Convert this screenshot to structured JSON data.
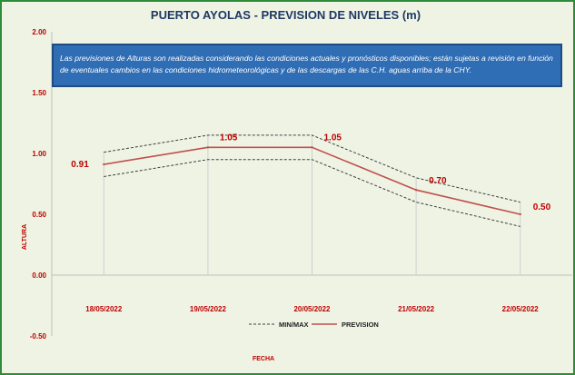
{
  "chart_data": {
    "type": "line",
    "title": "PUERTO AYOLAS - PREVISION DE NIVELES (m)",
    "notice": "Las previsiones de Alturas son realizadas considerando las condiciones actuales y pronósticos disponibles;  están sujetas a revisión en función de eventuales cambios en las condiciones hidrometeorológicas y de las descargas de las C.H. aguas arriba de la CHY.",
    "xlabel": "FECHA",
    "ylabel": "ALTURA",
    "ylim": [
      -0.5,
      2.0
    ],
    "yticks": [
      "-0.50",
      "0.00",
      "0.50",
      "1.00",
      "1.50",
      "2.00"
    ],
    "categories": [
      "18/05/2022",
      "19/05/2022",
      "20/05/2022",
      "21/05/2022",
      "22/05/2022"
    ],
    "series": [
      {
        "name": "PREVISION",
        "values": [
          0.91,
          1.05,
          1.05,
          0.7,
          0.5
        ],
        "color": "#c0504d",
        "style": "solid"
      },
      {
        "name": "MIN/MAX",
        "role": "max",
        "values": [
          1.01,
          1.15,
          1.15,
          0.8,
          0.6
        ],
        "color": "#404040",
        "style": "dashed"
      },
      {
        "name": "MIN/MAX",
        "role": "min",
        "values": [
          0.81,
          0.95,
          0.95,
          0.6,
          0.4
        ],
        "color": "#404040",
        "style": "dashed"
      }
    ],
    "data_labels": [
      "0.91",
      "1.05",
      "1.05",
      "0.70",
      "0.50"
    ],
    "legend": {
      "position": "bottom",
      "items": [
        "MIN/MAX",
        "PREVISION"
      ]
    },
    "grid": false,
    "colors": {
      "frame": "#2e8b3a",
      "background": "#eef3e4",
      "notice_bg": "#2f6db5",
      "title": "#1f3864",
      "labels": "#c00000"
    }
  }
}
